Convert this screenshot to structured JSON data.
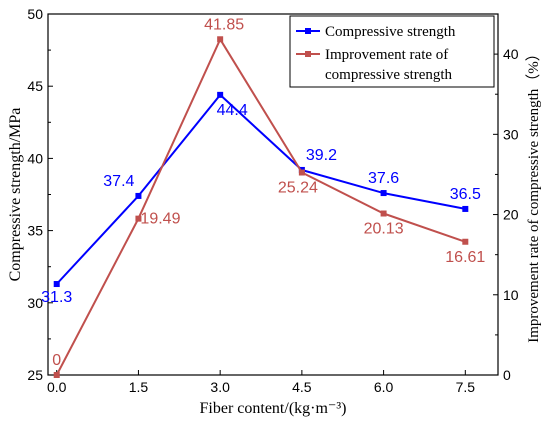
{
  "chart_data": {
    "type": "line",
    "xlabel": "Fiber content/(kg·m⁻³)",
    "ylabel_left": "Compressive strength/MPa",
    "ylabel_right": "Improvement rate of compressive strength（%）",
    "x": [
      0.0,
      1.5,
      3.0,
      4.5,
      6.0,
      7.5
    ],
    "x_tick_labels": [
      "0.0",
      "1.5",
      "3.0",
      "4.5",
      "6.0",
      "7.5"
    ],
    "ylim_left": [
      25,
      50
    ],
    "y_left_ticks": [
      25,
      30,
      35,
      40,
      45,
      50
    ],
    "ylim_right": [
      0,
      45
    ],
    "y_right_ticks": [
      0,
      10,
      20,
      30,
      40
    ],
    "grid": false,
    "legend_position": "top-right",
    "series": [
      {
        "name": "Compressive strength",
        "axis": "left",
        "color": "#0000ff",
        "marker": "square",
        "values": [
          31.3,
          37.4,
          44.4,
          39.2,
          37.6,
          36.5
        ],
        "labels": [
          "31.3",
          "37.4",
          "44.4",
          "39.2",
          "37.6",
          "36.5"
        ]
      },
      {
        "name": "Improvement rate of compressive strength",
        "legend_lines": [
          "Improvement rate of",
          "compressive strength"
        ],
        "axis": "right",
        "color": "#c0504d",
        "marker": "square",
        "values": [
          0,
          19.49,
          41.85,
          25.24,
          20.13,
          16.61
        ],
        "labels": [
          "0",
          "19.49",
          "41.85",
          "25.24",
          "20.13",
          "16.61"
        ]
      }
    ]
  }
}
